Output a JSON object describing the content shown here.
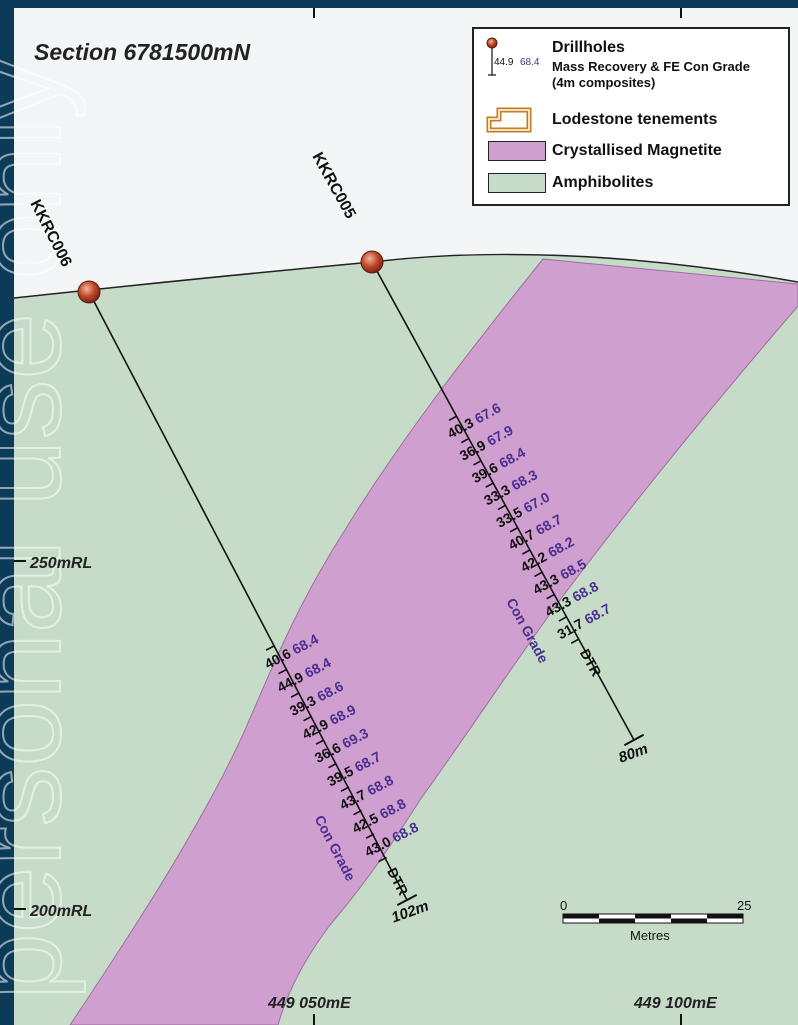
{
  "section_title": "Section 6781500mN",
  "legend": {
    "drillholes_title": "Drillholes",
    "drillholes_sub1": "Mass Recovery & FE Con Grade",
    "drillholes_sub2": "(4m composites)",
    "sample_recovery": "44.9",
    "sample_grade": "68.4",
    "tenements_label": "Lodestone tenements",
    "magnetite_label": "Crystallised Magnetite",
    "amphibolites_label": "Amphibolites"
  },
  "colors": {
    "background_frame": "#0c3a59",
    "sky": "#f4f5f6",
    "amphibolites": "#c6dcc8",
    "crystallised_magnetite": "#cf9fcf",
    "tenement_outline": "#c77a1e",
    "collar": "#c0482a",
    "grade_text": "#4a2f8f"
  },
  "axes": {
    "rl_labels": [
      "250mRL",
      "200mRL"
    ],
    "easting_labels": [
      "449 050mE",
      "449 100mE"
    ]
  },
  "scale_bar": {
    "start": "0",
    "end": "25",
    "unit": "Metres"
  },
  "drillholes": [
    {
      "name": "KKRC006",
      "depth_label": "102m",
      "dtr_label": "DTR",
      "con_grade_label": "Con Grade",
      "intervals": [
        {
          "recovery": "40.6",
          "grade": "68.4"
        },
        {
          "recovery": "44.9",
          "grade": "68.4"
        },
        {
          "recovery": "39.3",
          "grade": "68.6"
        },
        {
          "recovery": "42.9",
          "grade": "68.9"
        },
        {
          "recovery": "36.6",
          "grade": "69.3"
        },
        {
          "recovery": "39.5",
          "grade": "68.7"
        },
        {
          "recovery": "43.7",
          "grade": "68.8"
        },
        {
          "recovery": "42.5",
          "grade": "68.8"
        },
        {
          "recovery": "43.0",
          "grade": "68.8"
        }
      ]
    },
    {
      "name": "KKRC005",
      "depth_label": "80m",
      "dtr_label": "DTR",
      "con_grade_label": "Con Grade",
      "intervals": [
        {
          "recovery": "40.3",
          "grade": "67.6"
        },
        {
          "recovery": "36.9",
          "grade": "67.9"
        },
        {
          "recovery": "39.6",
          "grade": "68.4"
        },
        {
          "recovery": "33.3",
          "grade": "68.3"
        },
        {
          "recovery": "33.5",
          "grade": "67.0"
        },
        {
          "recovery": "40.7",
          "grade": "68.7"
        },
        {
          "recovery": "42.2",
          "grade": "68.2"
        },
        {
          "recovery": "43.3",
          "grade": "68.5"
        },
        {
          "recovery": "43.3",
          "grade": "68.8"
        },
        {
          "recovery": "31.7",
          "grade": "68.7"
        }
      ]
    }
  ]
}
